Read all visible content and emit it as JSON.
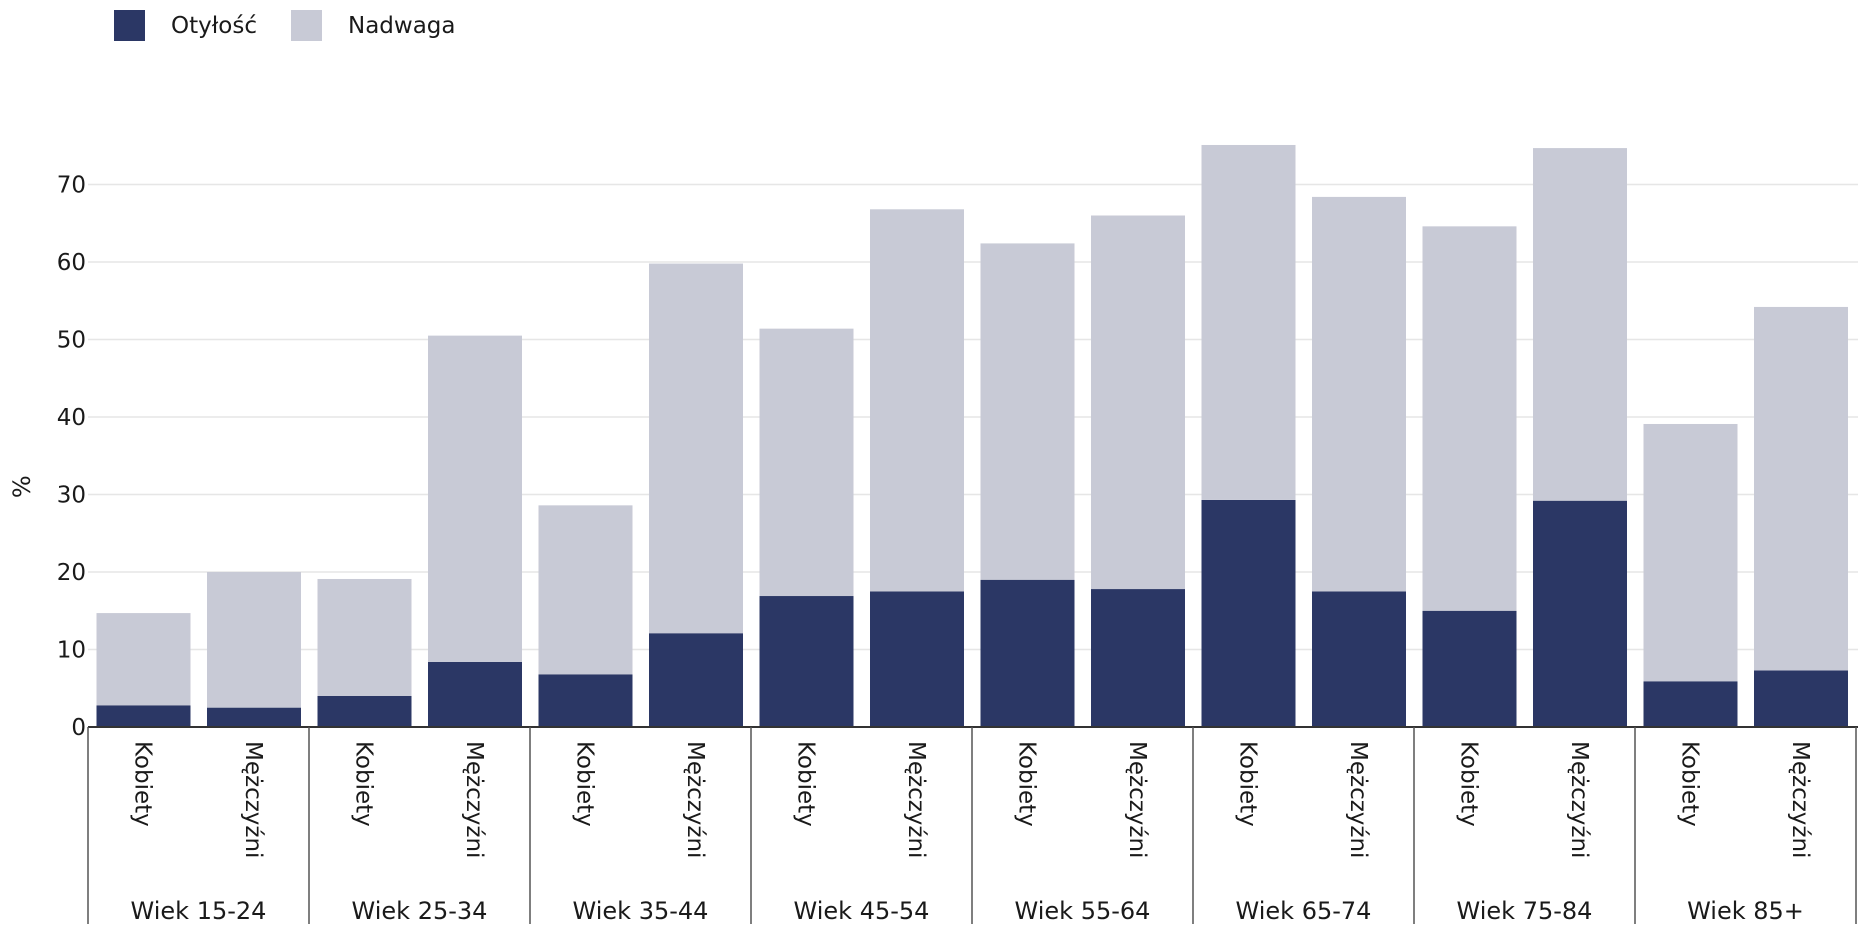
{
  "chart_data": {
    "type": "bar",
    "stacked": true,
    "ylabel": "%",
    "ylim": [
      0,
      75
    ],
    "yticks": [
      0,
      10,
      20,
      30,
      40,
      50,
      60,
      70
    ],
    "grid": true,
    "legend_position": "top-left",
    "groups": [
      "Wiek 15-24",
      "Wiek 25-34",
      "Wiek 35-44",
      "Wiek 45-54",
      "Wiek 55-64",
      "Wiek 65-74",
      "Wiek 75-84",
      "Wiek 85+"
    ],
    "sub_categories": [
      "Kobiety",
      "Mężczyźni"
    ],
    "series": [
      {
        "name": "Otyłość",
        "color": "#2b3765",
        "values": [
          2.8,
          2.5,
          4.0,
          8.4,
          6.8,
          12.1,
          16.9,
          17.5,
          19.0,
          17.8,
          29.3,
          17.5,
          15.0,
          29.2,
          5.9,
          7.3
        ]
      },
      {
        "name": "Nadwaga",
        "color": "#c8cad6",
        "values": [
          11.9,
          17.5,
          15.1,
          42.1,
          21.8,
          47.7,
          34.5,
          49.3,
          43.4,
          48.2,
          45.8,
          50.9,
          49.6,
          45.5,
          33.2,
          46.9
        ]
      }
    ]
  }
}
